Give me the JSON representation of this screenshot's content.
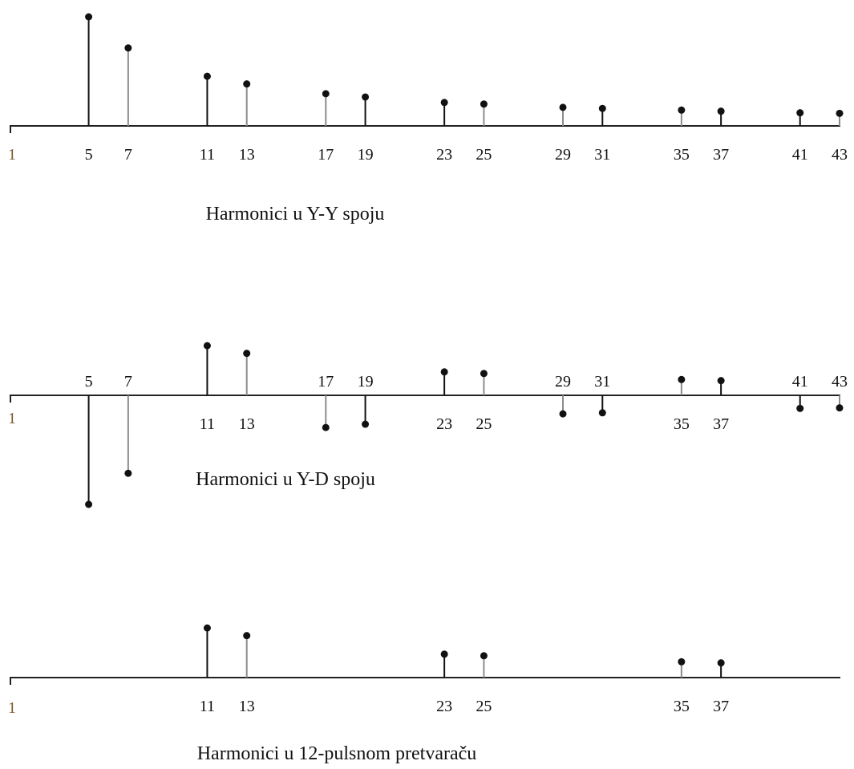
{
  "chart_data": [
    {
      "type": "stem",
      "title": "Harmonici u Y-Y spoju",
      "origin_label": "1",
      "x": [
        5,
        7,
        11,
        13,
        17,
        19,
        23,
        25,
        29,
        31,
        35,
        37,
        41,
        43
      ],
      "values": [
        0.2,
        0.143,
        0.091,
        0.077,
        0.059,
        0.053,
        0.043,
        0.04,
        0.034,
        0.032,
        0.029,
        0.027,
        0.024,
        0.023
      ],
      "label_position": [
        "below",
        "below",
        "below",
        "below",
        "below",
        "below",
        "below",
        "below",
        "below",
        "below",
        "below",
        "below",
        "below",
        "below"
      ],
      "grid": false
    },
    {
      "type": "stem",
      "title": "Harmonici u Y-D spoju",
      "origin_label": "1",
      "x": [
        5,
        7,
        11,
        13,
        17,
        19,
        23,
        25,
        29,
        31,
        35,
        37,
        41,
        43
      ],
      "values": [
        -0.2,
        -0.143,
        0.091,
        0.077,
        -0.059,
        -0.053,
        0.043,
        0.04,
        -0.034,
        -0.032,
        0.029,
        0.027,
        -0.024,
        -0.023
      ],
      "label_position": [
        "above",
        "above",
        "below",
        "below",
        "above",
        "above",
        "below",
        "below",
        "above",
        "above",
        "below",
        "below",
        "above",
        "above"
      ],
      "grid": false
    },
    {
      "type": "stem",
      "title": "Harmonici u 12-pulsnom pretvaraču",
      "origin_label": "1",
      "x": [
        11,
        13,
        23,
        25,
        35,
        37
      ],
      "values": [
        0.091,
        0.077,
        0.043,
        0.04,
        0.029,
        0.027
      ],
      "label_position": [
        "below",
        "below",
        "below",
        "below",
        "below",
        "below"
      ],
      "grid": false
    }
  ]
}
